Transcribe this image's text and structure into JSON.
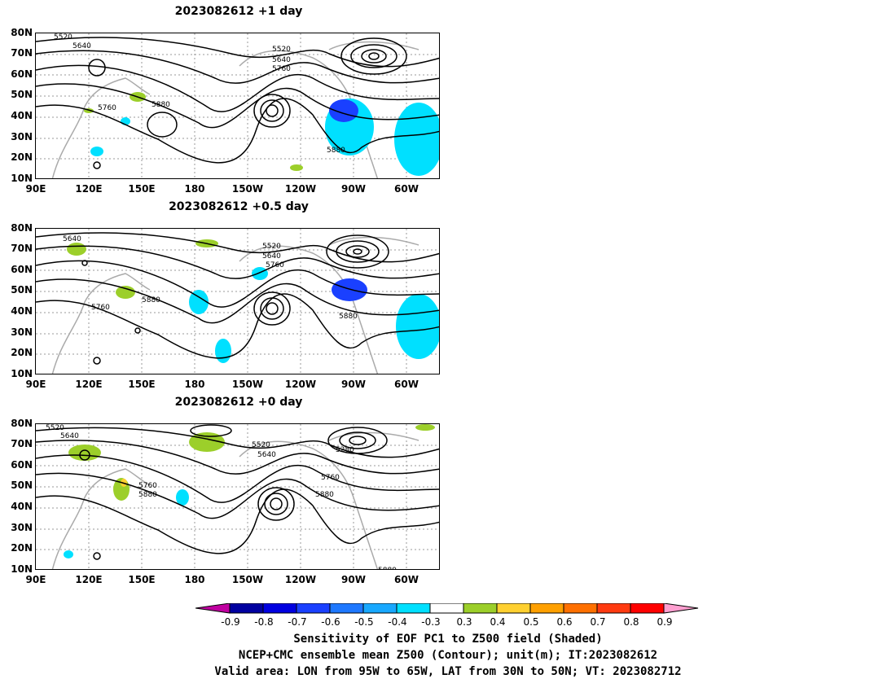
{
  "panels": [
    {
      "title": "2023082612  +1 day"
    },
    {
      "title": "2023082612  +0.5 day"
    },
    {
      "title": "2023082612  +0 day"
    }
  ],
  "lat_ticks": [
    "80N",
    "70N",
    "60N",
    "50N",
    "40N",
    "30N",
    "20N",
    "10N"
  ],
  "lon_ticks": [
    "90E",
    "120E",
    "150E",
    "180",
    "150W",
    "120W",
    "90W",
    "60W"
  ],
  "contour_labels": {
    "p1": [
      "5520",
      "5640",
      "5520",
      "5640",
      "5760",
      "5760",
      "5880",
      "5880"
    ],
    "p2": [
      "5640",
      "5520",
      "5640",
      "5760",
      "5760",
      "5880",
      "5880"
    ],
    "p3": [
      "5520",
      "5640",
      "5520",
      "5640",
      "5280",
      "5760",
      "5760",
      "5880",
      "5880",
      "5880"
    ]
  },
  "colorbar": {
    "labels": [
      "-0.9",
      "-0.8",
      "-0.7",
      "-0.6",
      "-0.5",
      "-0.4",
      "-0.3",
      "0.3",
      "0.4",
      "0.5",
      "0.6",
      "0.7",
      "0.8",
      "0.9"
    ],
    "colors": [
      "#0000a0",
      "#0000e0",
      "#1a40ff",
      "#1e78ff",
      "#18a8ff",
      "#00e0ff",
      "#ffffff",
      "#9ccf2a",
      "#ffd030",
      "#ffa000",
      "#ff7000",
      "#ff3a10",
      "#ff0000"
    ],
    "low_arrow": "#c000a0",
    "high_arrow": "#ff9fd0"
  },
  "caption": {
    "line1": "Sensitivity of EOF PC1 to Z500 field (Shaded)",
    "line2": "NCEP+CMC ensemble mean Z500 (Contour); unit(m); IT:2023082612",
    "line3": "Valid area: LON from 95W to 65W, LAT from 30N to 50N; VT: 2023082712"
  }
}
